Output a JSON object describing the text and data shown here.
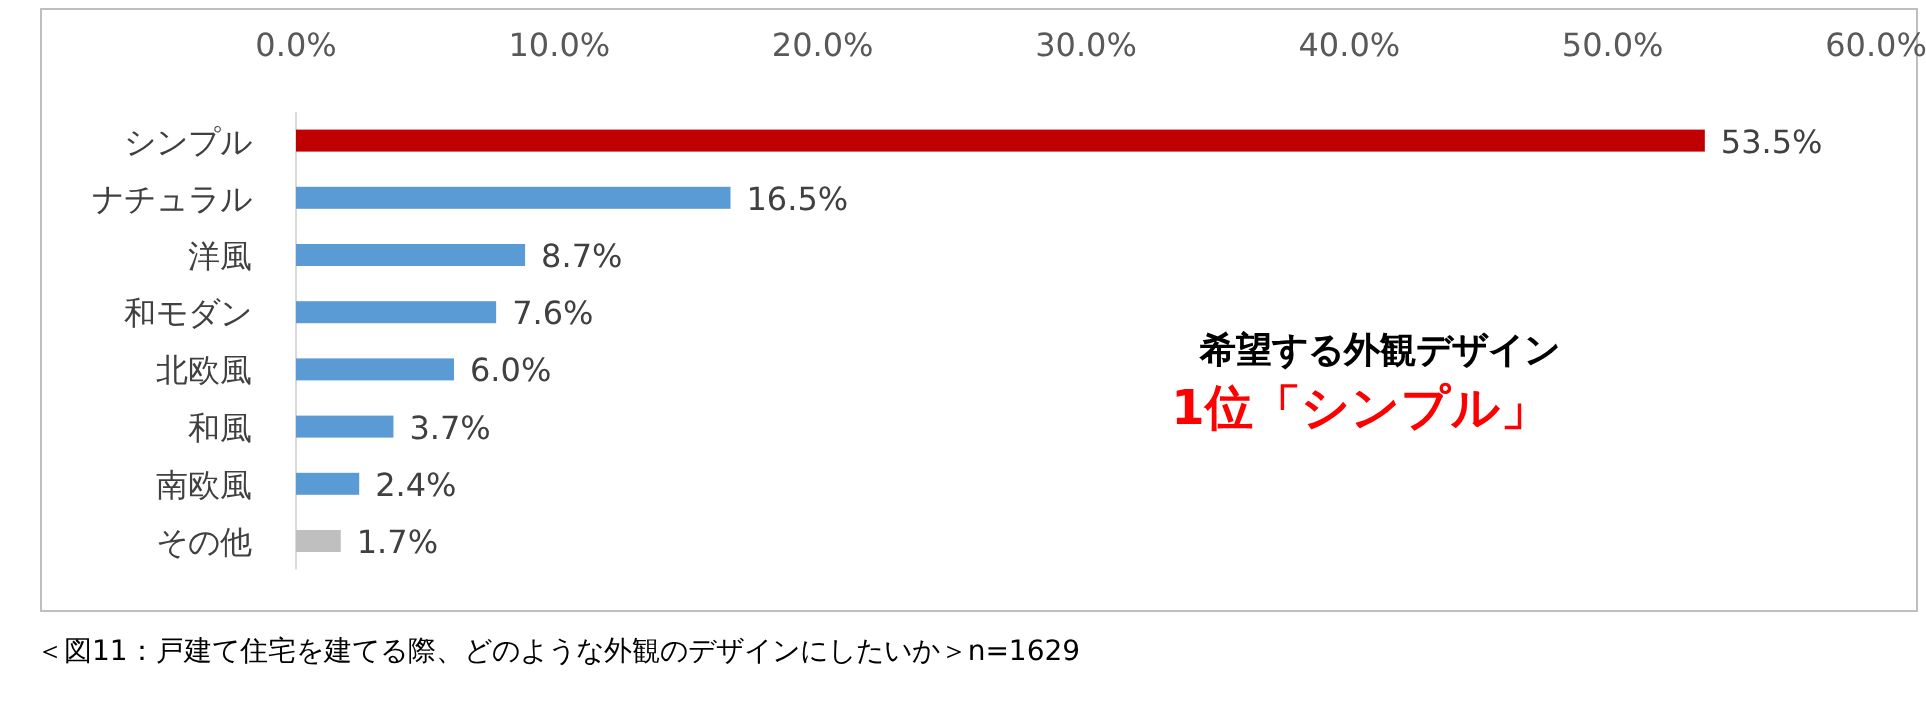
{
  "chart_data": {
    "type": "bar",
    "orientation": "horizontal",
    "categories": [
      "シンプル",
      "ナチュラル",
      "洋風",
      "和モダン",
      "北欧風",
      "和風",
      "南欧風",
      "その他"
    ],
    "values": [
      53.5,
      16.5,
      8.7,
      7.6,
      6.0,
      3.7,
      2.4,
      1.7
    ],
    "colors": [
      "#c00000",
      "#5b9bd5",
      "#5b9bd5",
      "#5b9bd5",
      "#5b9bd5",
      "#5b9bd5",
      "#5b9bd5",
      "#bfbfbf"
    ],
    "value_labels": [
      "53.5%",
      "16.5%",
      "8.7%",
      "7.6%",
      "6.0%",
      "3.7%",
      "2.4%",
      "1.7%"
    ],
    "xlim": [
      0,
      60
    ],
    "xticks": [
      {
        "value": 0,
        "label": "0.0%"
      },
      {
        "value": 10,
        "label": "10.0%"
      },
      {
        "value": 20,
        "label": "20.0%"
      },
      {
        "value": 30,
        "label": "30.0%"
      },
      {
        "value": 40,
        "label": "40.0%"
      },
      {
        "value": 50,
        "label": "50.0%"
      },
      {
        "value": 60,
        "label": "60.0%"
      }
    ],
    "annotations": [
      "希望する外観デザイン",
      "1位「シンプル」",
      "＜図11：戸建て住宅を建てる際、どのような外観のデザインにしたいか＞n=1629"
    ]
  }
}
